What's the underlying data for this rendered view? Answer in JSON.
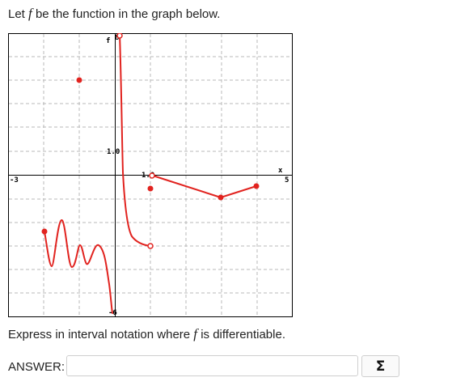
{
  "question": {
    "prefix": "Let",
    "fvar": "f",
    "suffix": "be the function in the graph below."
  },
  "graph": {
    "labels": {
      "xmin": "-3",
      "xmax": "5",
      "ymax": "8",
      "ymin": "-6",
      "x_unit": "1.0",
      "y_unit": "1.0",
      "f_label": "f",
      "x_axis_label": "x"
    },
    "curve_color": "#e1231f",
    "grid_color": "#b8b8b8",
    "icons": {
      "filled_point": "filled-point-icon",
      "open_point": "open-point-icon"
    }
  },
  "prompt": {
    "prefix": "Express in interval notation where",
    "fvar": "f",
    "suffix": "is differentiable."
  },
  "answer": {
    "label": "ANSWER:",
    "value": "",
    "placeholder": ""
  },
  "sigma_button": {
    "label": "Σ"
  }
}
